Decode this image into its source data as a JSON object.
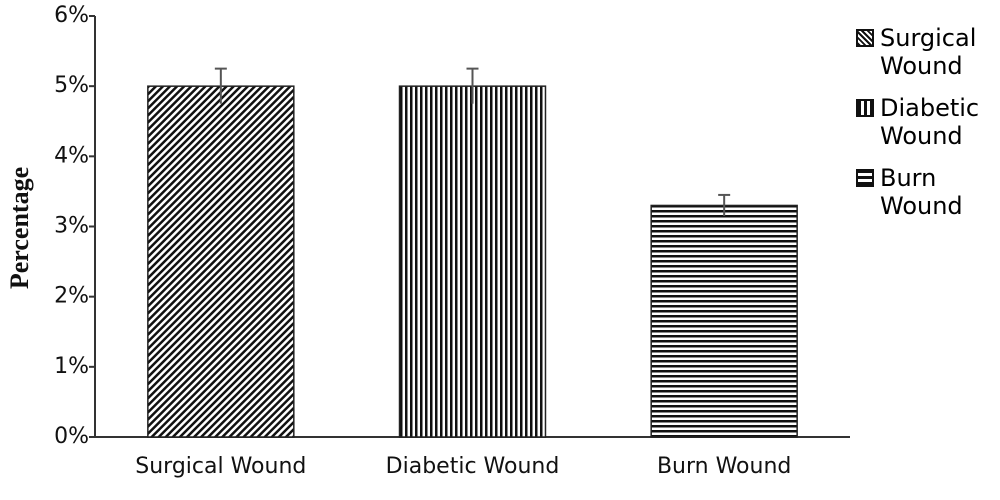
{
  "chart_data": {
    "type": "bar",
    "y_label": "Percentage",
    "categories": [
      "Surgical Wound",
      "Diabetic Wound",
      "Burn Wound"
    ],
    "values": [
      5,
      5,
      3.3
    ],
    "errors": [
      0.25,
      0.25,
      0.15
    ],
    "patterns": [
      "diagonal",
      "vertical",
      "horizontal"
    ],
    "ylim": [
      0,
      6
    ],
    "yticks": [
      {
        "value": 0,
        "label": "0%"
      },
      {
        "value": 1,
        "label": "1%"
      },
      {
        "value": 2,
        "label": "2%"
      },
      {
        "value": 3,
        "label": "3%"
      },
      {
        "value": 4,
        "label": "4%"
      },
      {
        "value": 5,
        "label": "5%"
      },
      {
        "value": 6,
        "label": "6%"
      }
    ],
    "grid": false,
    "legend": "right"
  }
}
